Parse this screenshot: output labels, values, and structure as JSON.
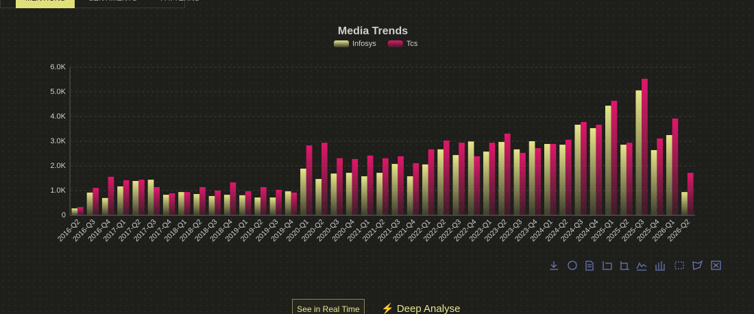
{
  "tabs": [
    "MENTIONS",
    "SENTIMENTS",
    "PATTERNS"
  ],
  "chart_data": {
    "type": "bar",
    "title": "Media Trends",
    "categories": [
      "2016-Q2",
      "2016-Q3",
      "2016-Q4",
      "2017-Q1",
      "2017-Q2",
      "2017-Q3",
      "2017-Q4",
      "2018-Q1",
      "2018-Q2",
      "2018-Q3",
      "2018-Q4",
      "2019-Q1",
      "2019-Q2",
      "2019-Q3",
      "2019-Q4",
      "2020-Q1",
      "2020-Q2",
      "2020-Q3",
      "2020-Q4",
      "2021-Q1",
      "2021-Q2",
      "2021-Q3",
      "2021-Q4",
      "2022-Q1",
      "2022-Q2",
      "2022-Q3",
      "2022-Q4",
      "2023-Q1",
      "2023-Q2",
      "2023-Q3",
      "2023-Q4",
      "2024-Q1",
      "2024-Q2",
      "2024-Q3",
      "2024-Q4",
      "2025-Q1",
      "2025-Q2",
      "2025-Q3",
      "2025-Q4",
      "2026-Q1",
      "2026-Q2"
    ],
    "series": [
      {
        "name": "Infosys",
        "color": "#e6e68a",
        "values": [
          280,
          920,
          700,
          1170,
          1390,
          1440,
          830,
          940,
          860,
          780,
          830,
          810,
          720,
          720,
          970,
          1890,
          1470,
          1690,
          1720,
          1580,
          1720,
          2080,
          1580,
          2060,
          2670,
          2440,
          2990,
          2580,
          2970,
          2670,
          3000,
          2890,
          2860,
          3670,
          3530,
          4440,
          2860,
          5060,
          2640,
          3250,
          940
        ]
      },
      {
        "name": "Tcs",
        "color": "#e0176a",
        "values": [
          330,
          1110,
          1560,
          1420,
          1440,
          1140,
          890,
          940,
          1140,
          1000,
          1330,
          970,
          1140,
          1030,
          920,
          2830,
          2940,
          2310,
          2280,
          2420,
          2310,
          2390,
          2110,
          2670,
          3030,
          2940,
          2390,
          2940,
          3310,
          2530,
          2720,
          2890,
          3060,
          3780,
          3670,
          4640,
          2940,
          5530,
          3110,
          3920,
          1720
        ]
      }
    ],
    "ylim": [
      0,
      6000
    ],
    "yticks": [
      0,
      {
        "value": 1000,
        "label": "1.0K"
      },
      {
        "value": 2000,
        "label": "2.0K"
      },
      {
        "value": 3000,
        "label": "3.0K"
      },
      {
        "value": 4000,
        "label": "4.0K"
      },
      {
        "value": 5000,
        "label": "5.0K"
      },
      {
        "value": 6000,
        "label": "6.0K"
      }
    ],
    "grid": true
  },
  "buttons": {
    "real_time": "See in Real Time",
    "deep_analyse": "⚡ Deep Analyse"
  }
}
